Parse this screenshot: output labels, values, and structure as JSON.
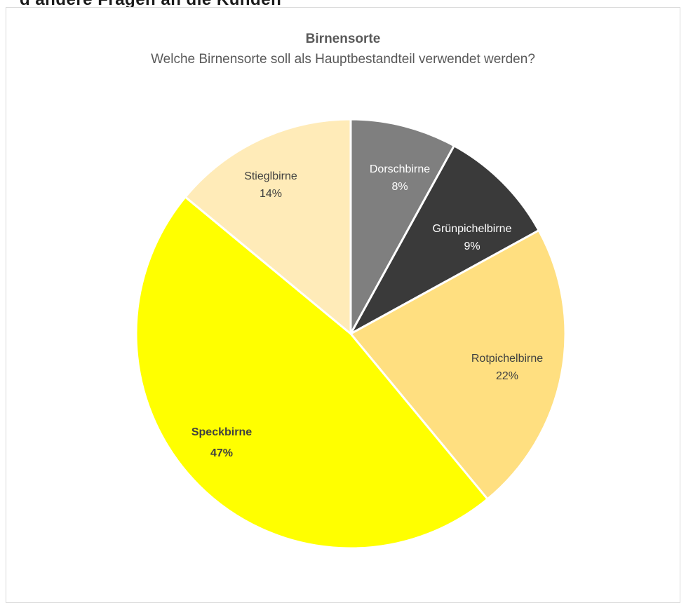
{
  "page_heading_partial": "d andere Fragen an die Kunden",
  "chart_data": {
    "type": "pie",
    "title": "Birnensorte",
    "subtitle": "Welche Birnensorte soll als Hauptbestandteil verwendet werden?",
    "slices": [
      {
        "label": "Dorschbirne",
        "value": 8,
        "value_label": "8%",
        "color": "#7f7f7f",
        "text_color": "#ffffff",
        "bold": false
      },
      {
        "label": "Grünpichelbirne",
        "value": 9,
        "value_label": "9%",
        "color": "#3a3a3a",
        "text_color": "#ffffff",
        "bold": false
      },
      {
        "label": "Rotpichelbirne",
        "value": 22,
        "value_label": "22%",
        "color": "#ffdf80",
        "text_color": "#404040",
        "bold": false
      },
      {
        "label": "Speckbirne",
        "value": 47,
        "value_label": "47%",
        "color": "#ffff00",
        "text_color": "#404040",
        "bold": true
      },
      {
        "label": "Stieglbirne",
        "value": 14,
        "value_label": "14%",
        "color": "#ffebb8",
        "text_color": "#404040",
        "bold": false
      }
    ],
    "start_angle_deg": 0,
    "direction": "clockwise",
    "legend": "none"
  }
}
